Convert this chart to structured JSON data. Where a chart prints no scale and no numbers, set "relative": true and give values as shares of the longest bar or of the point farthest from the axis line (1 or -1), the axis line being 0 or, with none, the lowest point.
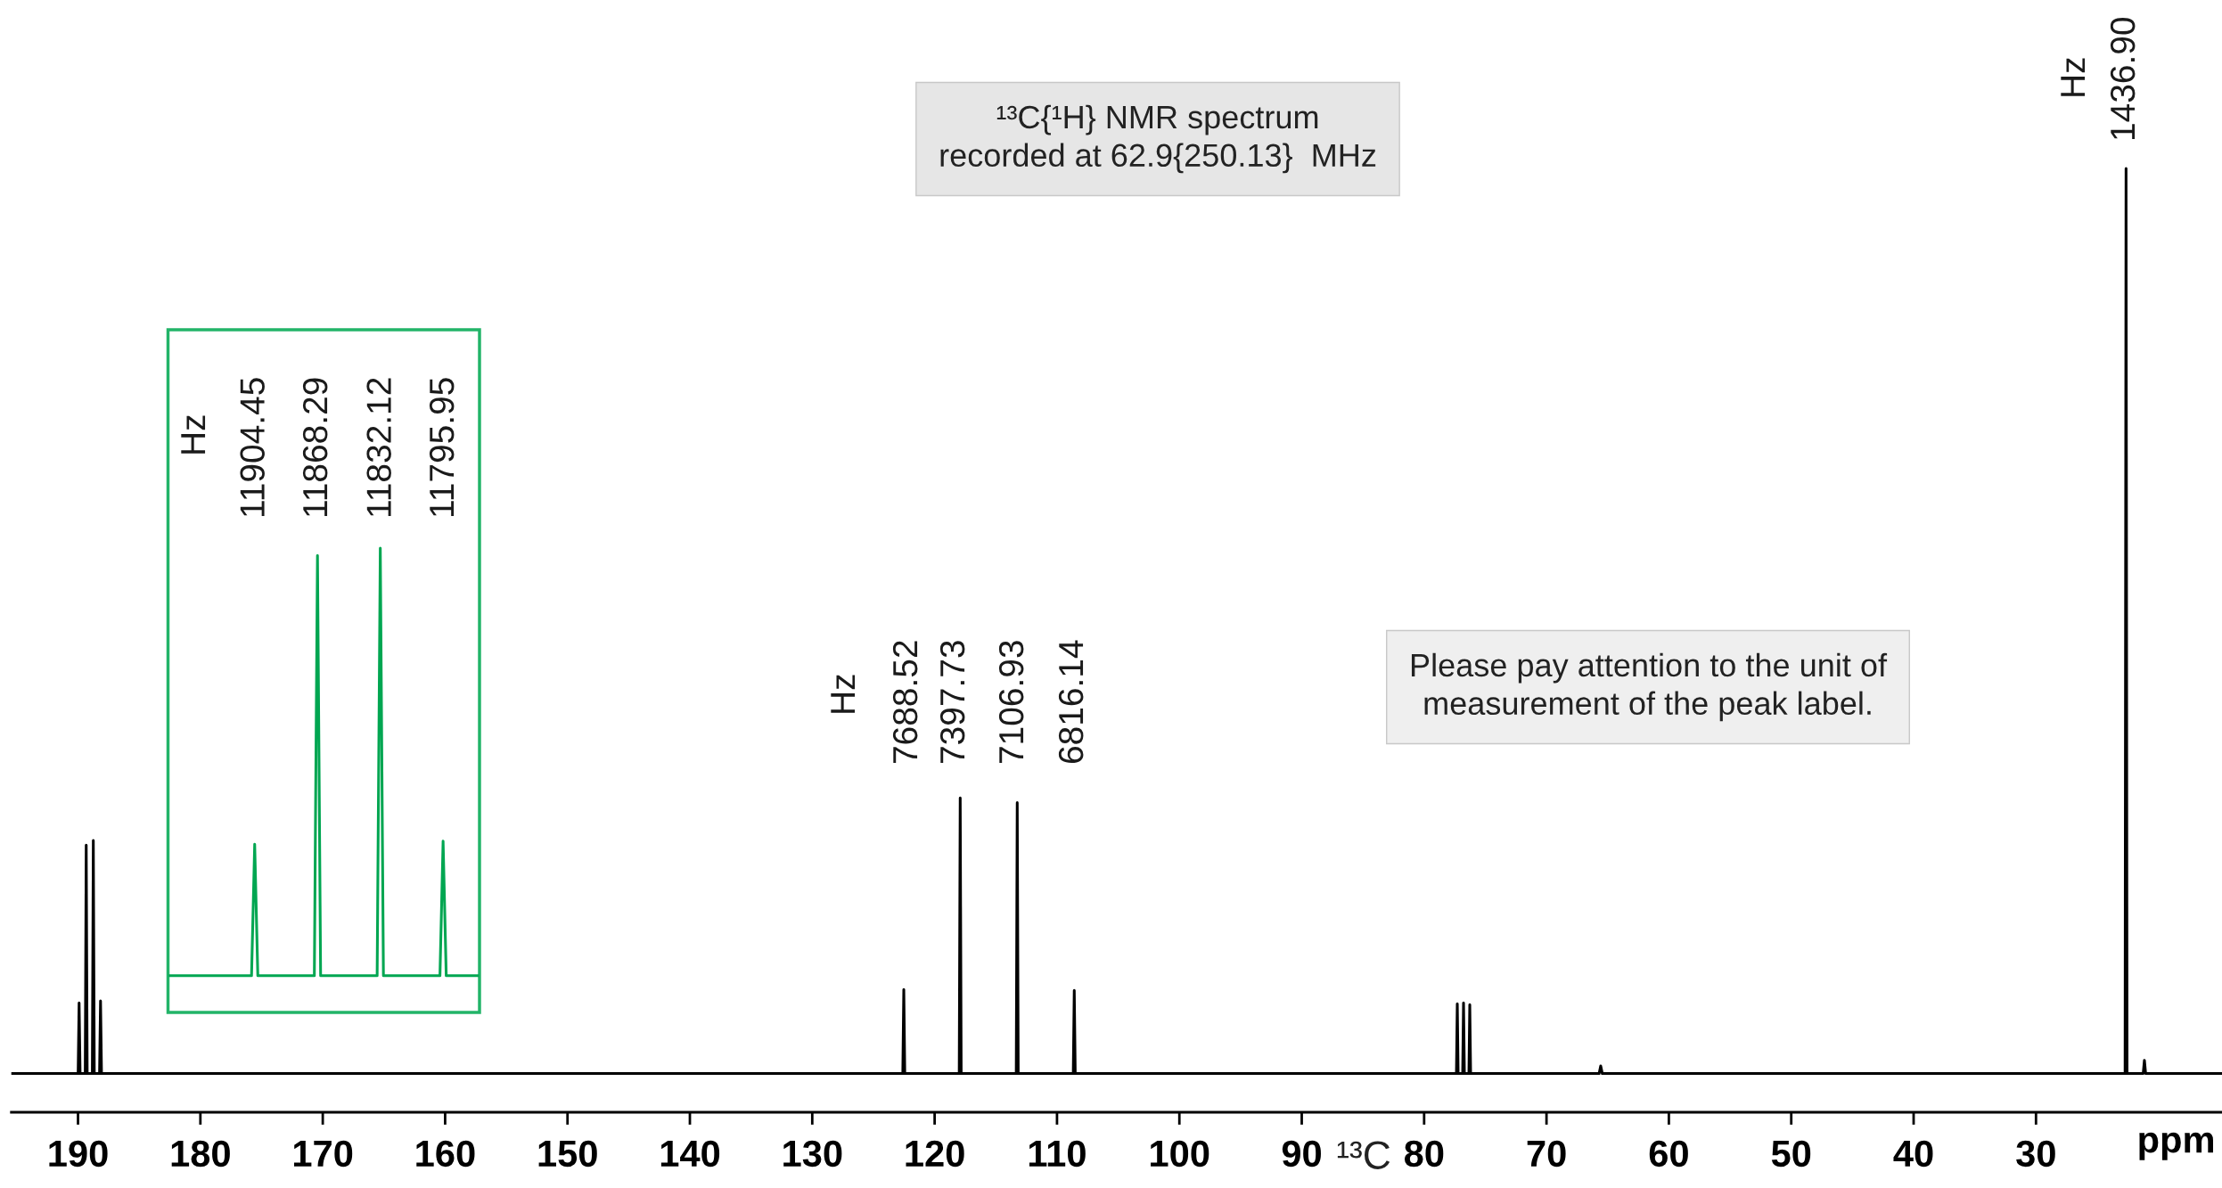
{
  "chart_data": [
    {
      "type": "line",
      "relative": true,
      "xlabel": "ppm",
      "tick_labels": "x",
      "grid": false,
      "legend": false,
      "marker": "none",
      "line_style": "solid",
      "xlim": [
        195.45,
        14.8
      ],
      "xticks": [
        190,
        180,
        170,
        160,
        150,
        140,
        130,
        120,
        110,
        100,
        90,
        80,
        70,
        60,
        50,
        40,
        30
      ],
      "series": [
        {
          "color": "#000000",
          "x": [
            195.45,
            189.99,
            189.91,
            189.83,
            189.41,
            189.33,
            189.25,
            188.83,
            188.75,
            188.67,
            188.24,
            188.16,
            188.08,
            122.6,
            122.52,
            122.44,
            117.99,
            117.91,
            117.83,
            113.33,
            113.25,
            113.17,
            108.67,
            108.59,
            108.51,
            77.36,
            77.29,
            77.22,
            76.85,
            76.78,
            76.71,
            76.34,
            76.27,
            76.2,
            65.7,
            65.57,
            65.44,
            22.72,
            22.64,
            22.56,
            21.24,
            21.14,
            21.04,
            14.8
          ],
          "values": [
            0.041,
            0.041,
            0.116,
            0.041,
            0.041,
            0.283,
            0.041,
            0.041,
            0.288,
            0.041,
            0.041,
            0.118,
            0.041,
            0.041,
            0.13,
            0.041,
            0.041,
            0.333,
            0.041,
            0.041,
            0.328,
            0.041,
            0.041,
            0.129,
            0.041,
            0.041,
            0.115,
            0.041,
            0.041,
            0.116,
            0.041,
            0.041,
            0.114,
            0.041,
            0.041,
            0.049,
            0.041,
            0.041,
            1,
            0.041,
            0.041,
            0.055,
            0.041,
            0.041
          ]
        }
      ],
      "annotations": [
        "¹³C{¹H} NMR spectrum\nrecorded at 62.9{250.13}  MHz",
        "Please pay attention to the unit of\nmeasurement of the peak label.",
        "¹³C",
        "Hz",
        "7688.52",
        "7397.73",
        "7106.93",
        "6816.14",
        "Hz",
        "1436.90"
      ]
    },
    {
      "type": "line",
      "relative": true,
      "tick_labels": false,
      "grid": false,
      "legend": false,
      "marker": "none",
      "line_style": "solid",
      "categories": [
        null,
        null,
        null,
        null,
        null,
        null,
        null,
        null,
        null,
        null,
        null,
        null,
        null,
        null,
        null,
        null,
        null,
        null,
        null,
        null,
        null,
        null,
        null,
        null,
        null,
        null,
        null,
        null,
        null,
        null,
        null,
        null,
        null,
        null,
        null,
        null,
        null,
        null,
        null,
        null,
        null,
        null,
        null,
        null,
        null,
        null,
        null,
        null,
        null,
        null,
        null,
        null,
        null,
        null,
        null,
        null,
        null,
        null,
        null,
        null,
        null,
        null,
        null,
        null,
        null,
        null,
        null,
        null,
        null,
        null,
        null,
        null,
        null,
        null,
        null,
        null,
        null,
        null,
        null,
        null,
        null,
        null,
        null,
        null,
        null,
        null,
        null,
        null,
        null,
        null,
        null,
        null,
        null,
        null,
        null,
        null,
        null,
        null,
        null
      ],
      "series": [
        {
          "color": "#00a651",
          "values": [
            0.079,
            0.079,
            0.079,
            0.079,
            0.079,
            0.079,
            0.079,
            0.079,
            0.079,
            0.079,
            0.079,
            0.079,
            0.079,
            0.079,
            0.079,
            0.079,
            0.079,
            0.079,
            0.079,
            0.079,
            0.079,
            0.079,
            0.079,
            0.079,
            0.079,
            0.079,
            0.079,
            0.362,
            0.079,
            0.079,
            0.079,
            0.079,
            0.079,
            0.079,
            0.079,
            0.079,
            0.079,
            0.079,
            0.079,
            0.079,
            0.079,
            0.079,
            0.079,
            0.079,
            0.079,
            0.079,
            0.079,
            0.984,
            0.079,
            0.079,
            0.079,
            0.079,
            0.079,
            0.079,
            0.079,
            0.079,
            0.079,
            0.079,
            0.079,
            0.079,
            0.079,
            0.079,
            0.079,
            0.079,
            0.079,
            0.079,
            0.079,
            1,
            0.079,
            0.079,
            0.079,
            0.079,
            0.079,
            0.079,
            0.079,
            0.079,
            0.079,
            0.079,
            0.079,
            0.079,
            0.079,
            0.079,
            0.079,
            0.079,
            0.079,
            0.079,
            0.079,
            0.369,
            0.079,
            0.079,
            0.079,
            0.079,
            0.079,
            0.079,
            0.079,
            0.079,
            0.079,
            0.079,
            0.079
          ]
        }
      ],
      "annotations": [
        "Hz",
        "11904.45",
        "11868.29",
        "11832.12",
        "11795.95"
      ]
    }
  ]
}
